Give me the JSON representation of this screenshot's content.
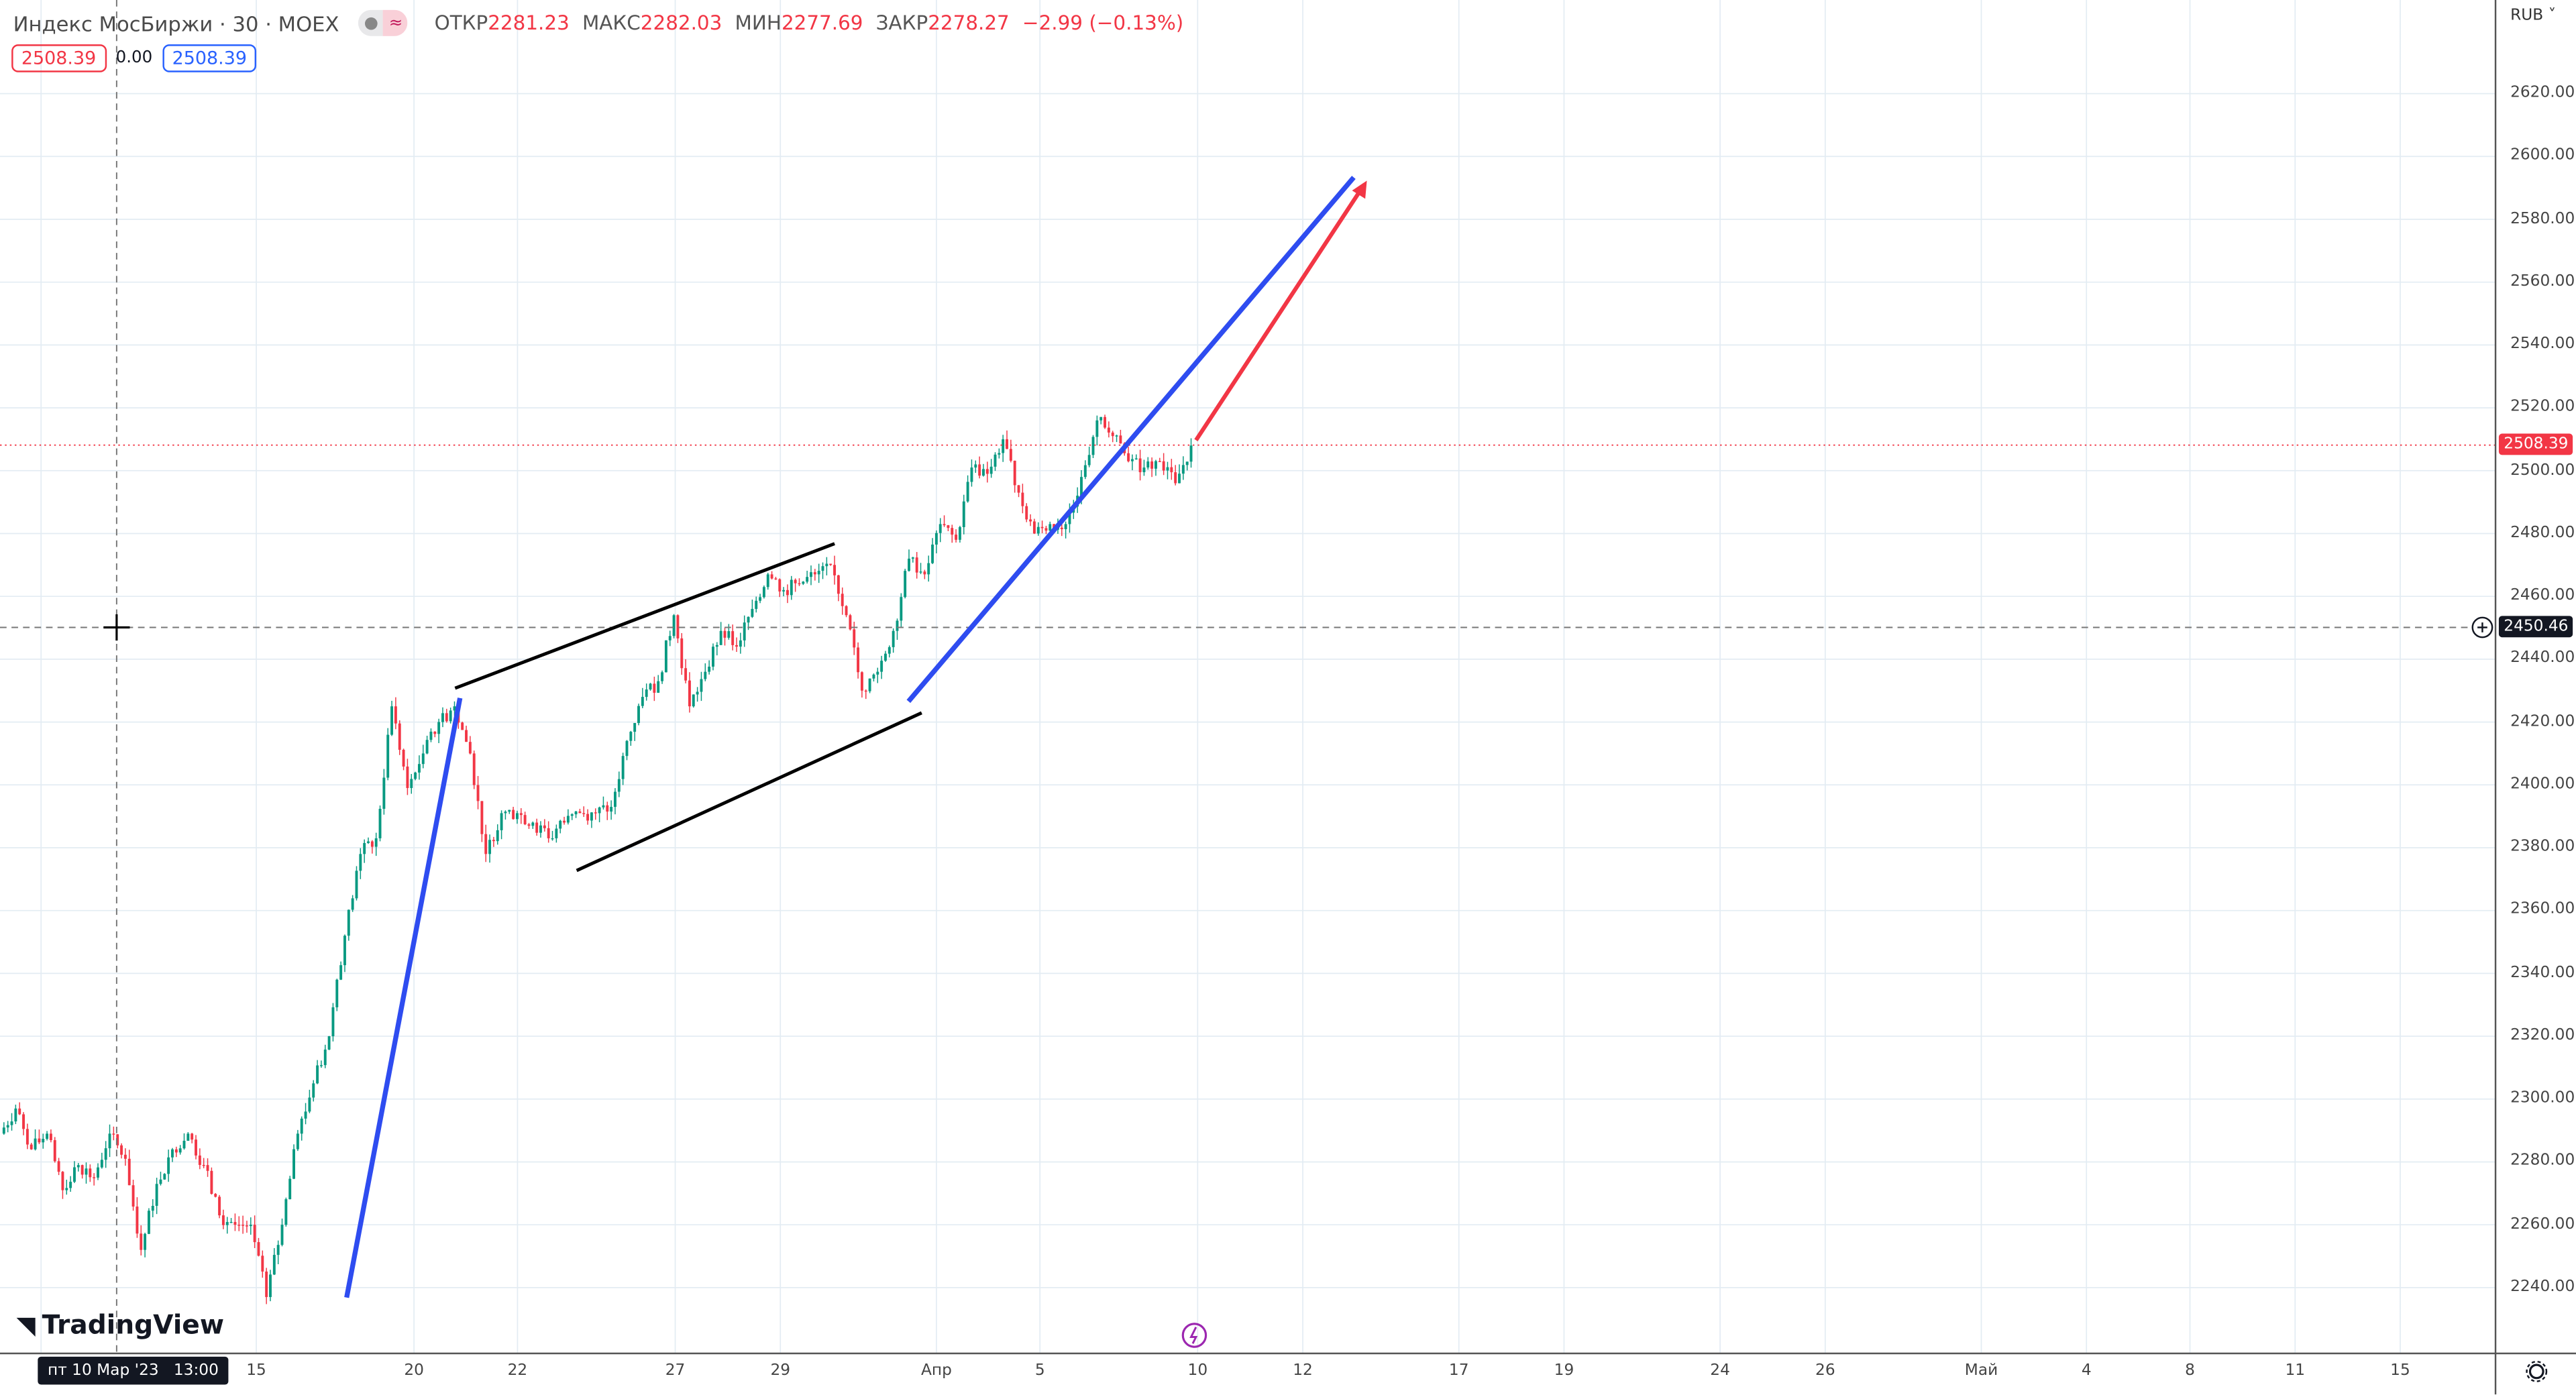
{
  "legend": {
    "title": "Индекс МосБиржи · 30 · MOEX",
    "open_label": "ОТКР",
    "open": "2281.23",
    "high_label": "МАКС",
    "high": "2282.03",
    "low_label": "МИН",
    "low": "2277.69",
    "close_label": "ЗАКР",
    "close": "2278.27",
    "change": "−2.99 (−0.13%)"
  },
  "price_boxes": {
    "bid": "2508.39",
    "spread": "0.00",
    "ask": "2508.39"
  },
  "currency": "RUB",
  "price_axis": [
    "2620.00",
    "2600.00",
    "2580.00",
    "2560.00",
    "2540.00",
    "2520.00",
    "2500.00",
    "2480.00",
    "2460.00",
    "2440.00",
    "2420.00",
    "2400.00",
    "2380.00",
    "2360.00",
    "2340.00",
    "2320.00",
    "2300.00",
    "2280.00",
    "2260.00",
    "2240.00"
  ],
  "time_axis": [
    "15",
    "20",
    "22",
    "27",
    "29",
    "Апр",
    "5",
    "10",
    "12",
    "17",
    "19",
    "24",
    "26",
    "Май",
    "4",
    "8",
    "11",
    "15"
  ],
  "crosshair": {
    "time": "пт 10 Мар '23   13:00",
    "price": "2450.46"
  },
  "last_price": "2508.39",
  "logo": "TradingView",
  "colors": {
    "up": "#089981",
    "down": "#f23645",
    "trend_blue": "#2e4cf0",
    "arrow_red": "#f23645",
    "drawing_black": "#000000"
  },
  "closes": [
    2289,
    2297,
    2284,
    2289,
    2271,
    2279,
    2275,
    2289,
    2281,
    2252,
    2273,
    2284,
    2289,
    2279,
    2263,
    2260,
    2260,
    2237,
    2260,
    2289,
    2305,
    2320,
    2352,
    2378,
    2383,
    2425,
    2399,
    2410,
    2420,
    2425,
    2410,
    2378,
    2391,
    2391,
    2388,
    2383,
    2388,
    2391,
    2391,
    2393,
    2414,
    2428,
    2433,
    2454,
    2425,
    2436,
    2449,
    2444,
    2456,
    2467,
    2462,
    2464,
    2467,
    2470,
    2454,
    2430,
    2436,
    2449,
    2472,
    2467,
    2483,
    2478,
    2501,
    2499,
    2510,
    2493,
    2480,
    2483,
    2483,
    2498,
    2516,
    2511,
    2503,
    2501,
    2503,
    2496,
    2508
  ]
}
